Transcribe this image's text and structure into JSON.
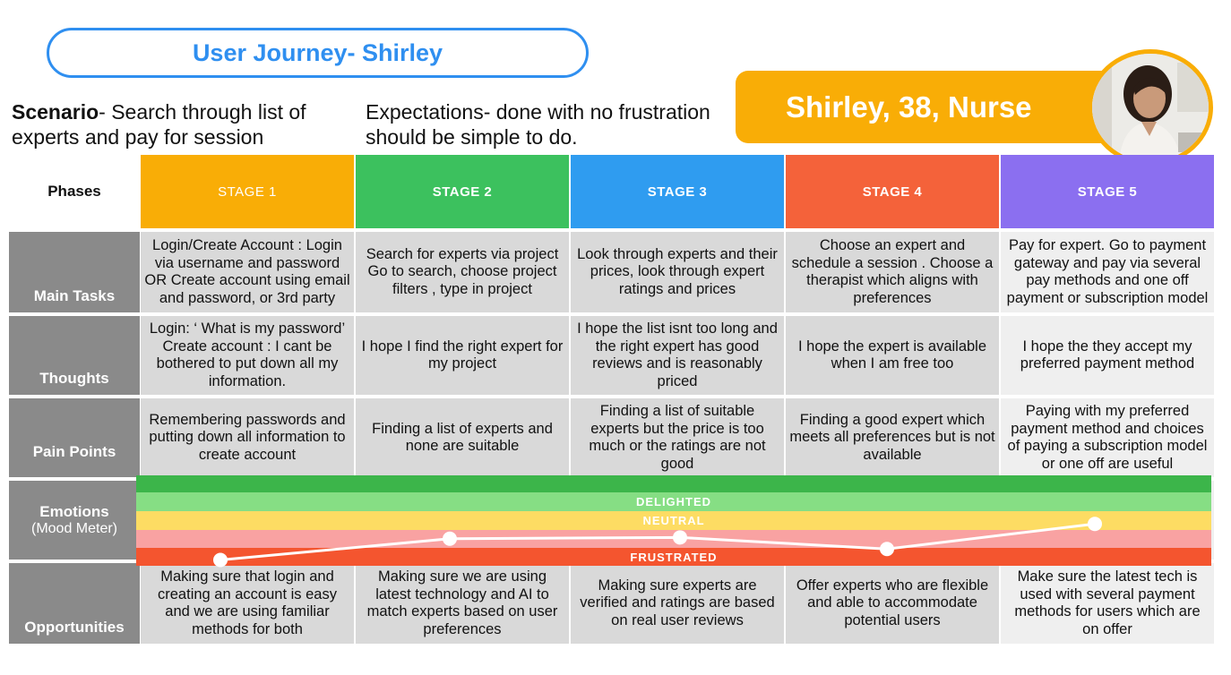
{
  "title": "User Journey- Shirley",
  "scenario": {
    "label": "Scenario",
    "text": "- Search through list of experts and pay for session"
  },
  "expectations": "Expectations- done with no frustration should be simple to do.",
  "persona": {
    "name": "Shirley, 38, Nurse",
    "color": "#f9ad06"
  },
  "phases_label": "Phases",
  "stages": [
    {
      "label": "STAGE 1",
      "color": "#f9ad06"
    },
    {
      "label": "STAGE 2",
      "color": "#3cc15e"
    },
    {
      "label": "STAGE 3",
      "color": "#2f9cf0"
    },
    {
      "label": "STAGE 4",
      "color": "#f4623a"
    },
    {
      "label": "STAGE 5",
      "color": "#8b6ff0"
    }
  ],
  "rows": {
    "main_tasks": {
      "label": "Main Tasks",
      "cells": [
        "Login/Create Account : Login via username and password OR Create account using email and password, or 3rd party",
        "Search for experts via project Go to search, choose project filters , type in project",
        "Look through experts and their prices, look through expert ratings and prices",
        "Choose an expert and schedule a session . Choose a therapist which aligns with preferences",
        "Pay for expert. Go to payment gateway and pay via several pay methods and one off payment or subscription model"
      ]
    },
    "thoughts": {
      "label": "Thoughts",
      "cells": [
        "Login: ‘ What is my password’ Create account : I cant be bothered to put down all my information.",
        "I hope I find the right expert for my project",
        "I hope the list isnt too long and the right expert has good reviews and is reasonably priced",
        "I hope the expert is available when I am free too",
        "I hope the they accept my preferred payment method"
      ]
    },
    "pain_points": {
      "label": "Pain Points",
      "cells": [
        "Remembering passwords and putting down all information to create account",
        "Finding a list of experts and none are suitable",
        "Finding a list of suitable experts but the price is too much or the ratings are not good",
        "Finding a good expert which meets all preferences but is not available",
        "Paying with my preferred payment method and choices of paying a subscription model or one off are useful"
      ]
    },
    "emotions": {
      "label": "Emotions",
      "sublabel": "(Mood Meter)"
    },
    "opportunities": {
      "label": "Opportunities",
      "cells": [
        "Making sure that login and creating an account is easy and we are using familiar methods for both",
        "Making sure we are using latest technology and AI to match experts based on user preferences",
        "Making sure experts are verified and ratings are based on real user reviews",
        "Offer experts who are flexible and able to accommodate potential users",
        "Make sure the latest tech is used with several payment methods for users which are on offer"
      ]
    }
  },
  "mood_meter": {
    "bands": [
      {
        "label": "",
        "color": "#3cb54a"
      },
      {
        "label": "DELIGHTED",
        "color": "#86de84"
      },
      {
        "label": "NEUTRAL",
        "color": "#fddc63"
      },
      {
        "label": "",
        "color": "#f9a2a2"
      },
      {
        "label": "FRUSTRATED",
        "color": "#f4552f"
      }
    ],
    "scale_note": "0 = frustrated, 1 = delighted",
    "levels": [
      0.09,
      0.42,
      0.44,
      0.26,
      0.65
    ]
  }
}
